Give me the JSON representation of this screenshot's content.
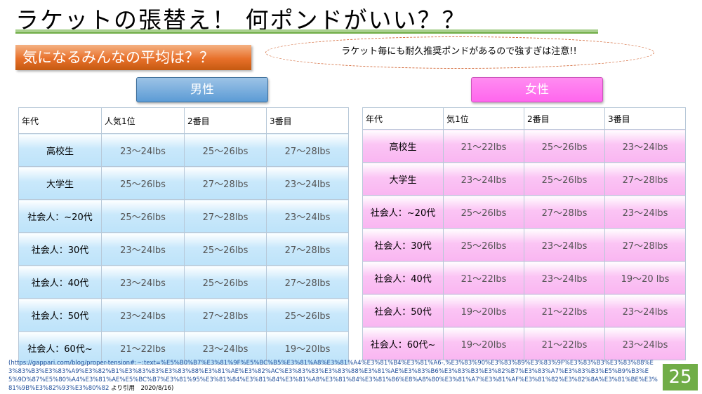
{
  "title": "ラケットの張替え！ 何ポンドがいい？？",
  "subheading": "気になるみんなの平均は？？",
  "note": "ラケット毎にも耐久推奨ポンドがあるので強すぎは注意!!",
  "male": {
    "label": "男性",
    "headers": [
      "年代",
      "人気1位",
      "2番目",
      "3番目"
    ],
    "rows": [
      [
        "高校生",
        "23～24lbs",
        "25～26lbs",
        "27～28lbs"
      ],
      [
        "大学生",
        "25～26lbs",
        "27～28lbs",
        "23～24lbs"
      ],
      [
        "社会人：~20代",
        "25～26lbs",
        "27～28lbs",
        "23～24lbs"
      ],
      [
        "社会人：30代",
        "23～24lbs",
        "25～26lbs",
        "27～28lbs"
      ],
      [
        "社会人：40代",
        "23～24lbs",
        "25～26lbs",
        "27～28lbs"
      ],
      [
        "社会人：50代",
        "23～24lbs",
        "27～28lbs",
        "25～26lbs"
      ],
      [
        "社会人：60代~",
        "21～22lbs",
        "23～24lbs",
        "19～20lbs"
      ]
    ]
  },
  "female": {
    "label": "女性",
    "headers": [
      "年代",
      "気1位",
      "2番目",
      "3番目"
    ],
    "rows": [
      [
        "高校生",
        "21～22lbs",
        "25～26lbs",
        "23～24lbs"
      ],
      [
        "大学生",
        "23～24lbs",
        "25～26lbs",
        "27～28lbs"
      ],
      [
        "社会人：~20代",
        "25～26lbs",
        "27～28lbs",
        "23～24lbs"
      ],
      [
        "社会人：30代",
        "25～26lbs",
        "23～24lbs",
        "27～28lbs"
      ],
      [
        "社会人：40代",
        "21～22lbs",
        "23～24lbs",
        "19～20 lbs"
      ],
      [
        "社会人：50代",
        "19～20lbs",
        "21～22lbs",
        "23～24lbs"
      ],
      [
        "社会人：60代~",
        "19～20lbs",
        "21～22lbs",
        "23～24lbs"
      ]
    ]
  },
  "footnote": {
    "url": "(https://gappari.com/blog/proper-tension#:~:text=%E5%B0%B7%E3%81%9F%E5%BC%B5%E3%81%A8%E3%81%A4%E3%81%B4%E3%81%A6-,%E3%83%90%E3%83%89%E3%83%9F%E3%83%B3%E3%83%88%E3%83%B3%E3%83%A9%E3%82%B1%E3%83%83%E3%83%88%E3%81%AE%E3%82%AC%E3%83%83%E3%83%88%E3%81%AE%E3%83%B6%E3%83%B3%E3%82%B7%E3%83%A7%E3%83%B3%E5%B9%B3%E5%9D%87%E5%80%A4%E3%81%AE%E5%BC%B7%E3%81%95%E3%81%84%E3%81%84%E3%81%A8%E3%81%84%E3%81%86%E8%A8%80%E3%81%A7%E3%81%AF%E3%81%82%E3%82%8A%E3%81%BE%E3%81%9B%E3%82%93%E3%80%82",
    "tail": " より引用　2020/8/16)"
  },
  "page_number": "25"
}
